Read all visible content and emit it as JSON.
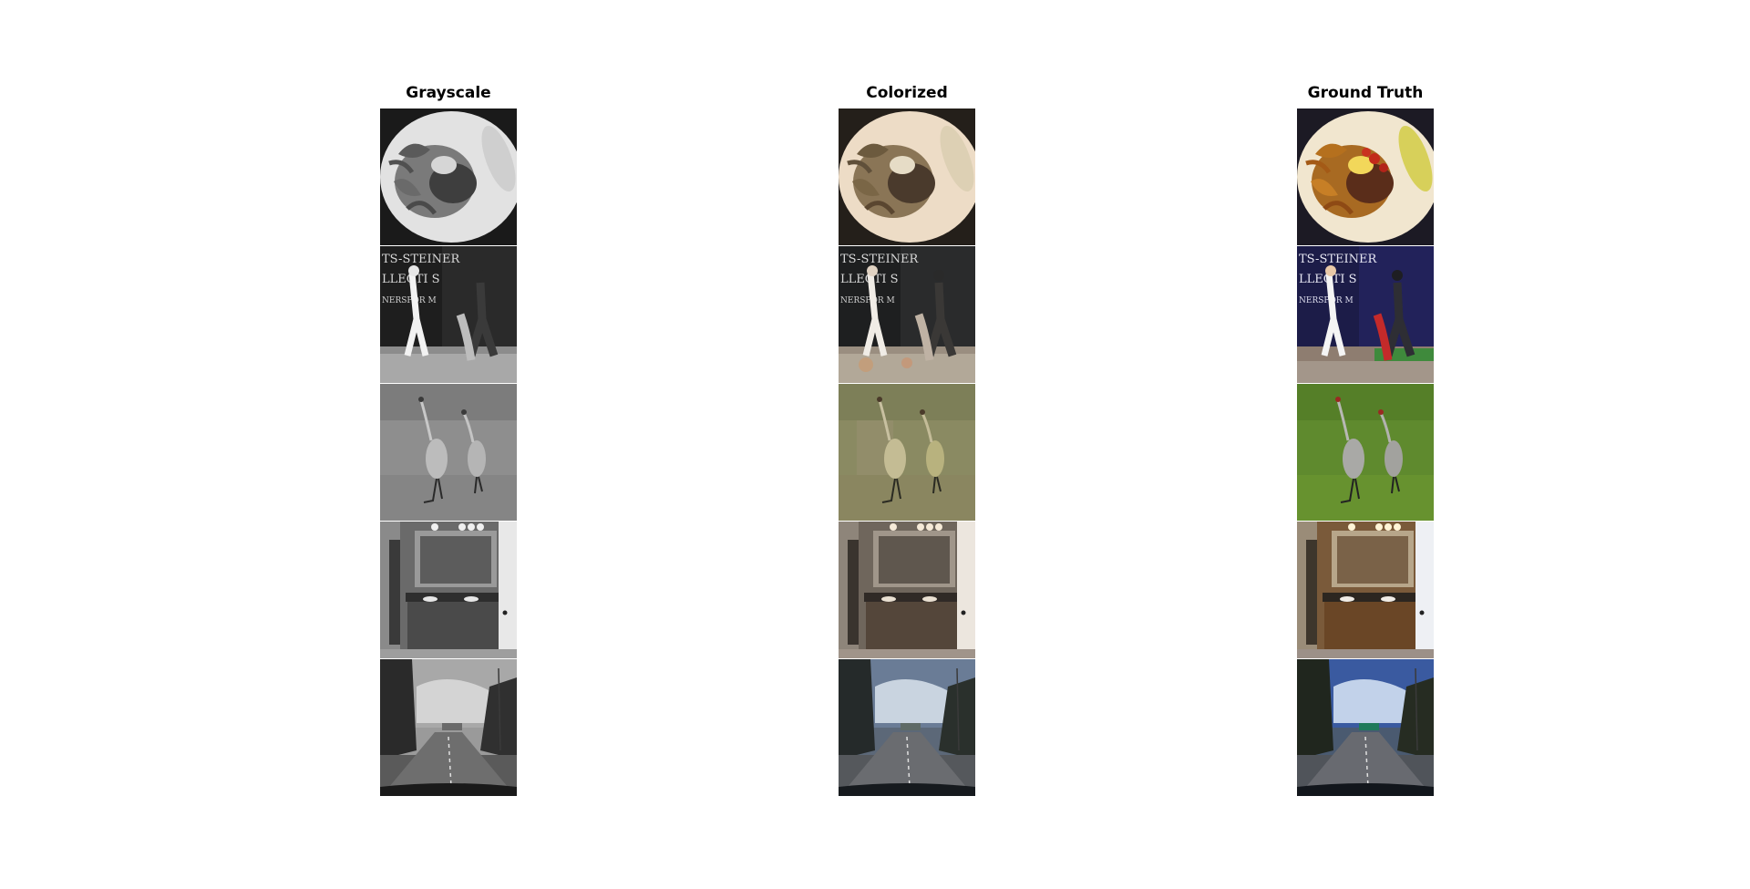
{
  "figure": {
    "columns": [
      {
        "key": "grayscale",
        "title": "Grayscale"
      },
      {
        "key": "colorized",
        "title": "Colorized"
      },
      {
        "key": "ground_truth",
        "title": "Ground Truth"
      }
    ],
    "rows": [
      {
        "subject": "plate of food with fries, onions and pickle"
      },
      {
        "subject": "baseball batter and catcher in front of sponsor wall"
      },
      {
        "subject": "two sandhill cranes standing on grass"
      },
      {
        "subject": "bathroom vanity with double sinks and mirror"
      },
      {
        "subject": "highway road viewed from car dashboard"
      }
    ]
  }
}
